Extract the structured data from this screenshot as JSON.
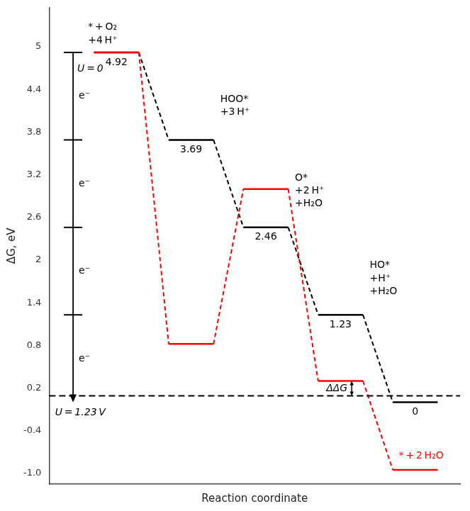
{
  "chart_data": {
    "type": "line",
    "xlabel": "Reaction coordinate",
    "ylabel": "ΔG, eV",
    "categories": [
      null,
      null,
      null,
      null,
      null
    ],
    "series": [
      {
        "color": "black",
        "values": [
          4.92,
          3.69,
          2.46,
          1.23,
          0
        ],
        "data_labels": true
      },
      {
        "color": "red",
        "values": [
          4.92,
          0.82,
          3.0,
          0.3,
          -0.95
        ]
      }
    ],
    "reference_line": 0.09,
    "ylim": [
      -1.15,
      5.55
    ],
    "yticks": [
      {
        "value": -1.0,
        "label": "-1.0"
      },
      -0.4,
      0.2,
      0.8,
      1.4,
      2,
      2.6,
      3.2,
      3.8,
      4.4,
      5
    ],
    "grid": false,
    "tick_labels": "y",
    "annotations": [
      {
        "text": "* + O₂\n+4 H⁺"
      },
      {
        "text": "U = 0"
      },
      {
        "text": "HOO*\n+3 H⁺"
      },
      {
        "text": "O*\n+2 H⁺\n+H₂O"
      },
      {
        "text": "HO*\n+H⁺\n+H₂O"
      },
      {
        "text": "U = 1.23 V"
      },
      {
        "text": "* + 2 H₂O",
        "color": "red"
      },
      {
        "text": "ΔΔG"
      },
      {
        "text": "e⁻"
      },
      {
        "text": "e⁻"
      },
      {
        "text": "e⁻"
      },
      {
        "text": "e⁻"
      }
    ]
  }
}
